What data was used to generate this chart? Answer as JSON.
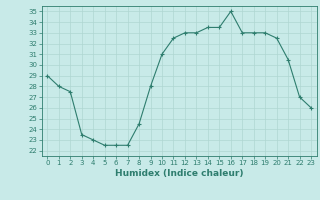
{
  "x": [
    0,
    1,
    2,
    3,
    4,
    5,
    6,
    7,
    8,
    9,
    10,
    11,
    12,
    13,
    14,
    15,
    16,
    17,
    18,
    19,
    20,
    21,
    22,
    23
  ],
  "y": [
    29,
    28,
    27.5,
    23.5,
    23,
    22.5,
    22.5,
    22.5,
    24.5,
    28,
    31,
    32.5,
    33,
    33,
    33.5,
    33.5,
    35,
    33,
    33,
    33,
    32.5,
    30.5,
    27,
    26
  ],
  "line_color": "#2e7d6e",
  "marker": "+",
  "bg_color": "#c8eae8",
  "grid_color": "#afd6d2",
  "xlabel": "Humidex (Indice chaleur)",
  "xlim": [
    -0.5,
    23.5
  ],
  "ylim": [
    21.5,
    35.5
  ],
  "yticks": [
    22,
    23,
    24,
    25,
    26,
    27,
    28,
    29,
    30,
    31,
    32,
    33,
    34,
    35
  ],
  "xticks": [
    0,
    1,
    2,
    3,
    4,
    5,
    6,
    7,
    8,
    9,
    10,
    11,
    12,
    13,
    14,
    15,
    16,
    17,
    18,
    19,
    20,
    21,
    22,
    23
  ]
}
